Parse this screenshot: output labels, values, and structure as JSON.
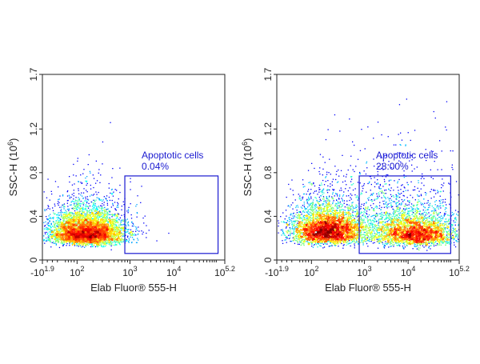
{
  "chart_data": [
    {
      "type": "scatter",
      "subtype": "flow-cytometry-density-dot-plot",
      "xlabel": "Elab Fluor® 555-H",
      "ylabel": "SSC-H",
      "ylabel_unit_base": "10",
      "ylabel_unit_exp": "6",
      "x_scale": "biexponential",
      "xlim": [
        -79.4,
        158489
      ],
      "ylim": [
        0,
        1.7
      ],
      "y_ticks": [
        "0",
        "0.4",
        "0.8",
        "1.2",
        "1.7"
      ],
      "y_tick_values": [
        0,
        0.4,
        0.8,
        1.2,
        1.7
      ],
      "x_ticks": [
        {
          "value": -79.4,
          "base": "-10",
          "exp": "1.9"
        },
        {
          "value": 100,
          "base": "10",
          "exp": "2"
        },
        {
          "value": 1000,
          "base": "10",
          "exp": "3"
        },
        {
          "value": 10000,
          "base": "10",
          "exp": "4"
        },
        {
          "value": 158489,
          "base": "10",
          "exp": "5.2"
        }
      ],
      "colormap": "jet (density)",
      "gate": {
        "name": "Apoptotic cells",
        "percent": "0.04%",
        "x_range": [
          800,
          110000
        ],
        "y_range": [
          0.06,
          0.77
        ],
        "color": "#1a1ad0"
      },
      "populations": [
        {
          "center_x": 150,
          "center_y": 0.27,
          "sd_decades": 0.42,
          "sd_y_log": 0.5,
          "floor_y": 0.1,
          "events": 5000
        }
      ],
      "gated_events": [
        [
          1000,
          0.75
        ],
        [
          1000,
          0.72
        ],
        [
          1000,
          0.65
        ],
        [
          1800,
          0.68
        ],
        [
          1700,
          0.53
        ],
        [
          1200,
          0.19
        ],
        [
          2300,
          0.25
        ],
        [
          2300,
          0.21
        ],
        [
          4000,
          0.18
        ],
        [
          7500,
          0.25
        ]
      ]
    },
    {
      "type": "scatter",
      "subtype": "flow-cytometry-density-dot-plot",
      "xlabel": "Elab Fluor® 555-H",
      "ylabel": "SSC-H",
      "ylabel_unit_base": "10",
      "ylabel_unit_exp": "6",
      "x_scale": "biexponential",
      "xlim": [
        -79.4,
        158489
      ],
      "ylim": [
        0,
        1.7
      ],
      "y_ticks": [
        "0",
        "0.4",
        "0.8",
        "1.2",
        "1.7"
      ],
      "y_tick_values": [
        0,
        0.4,
        0.8,
        1.2,
        1.7
      ],
      "x_ticks": [
        {
          "value": -79.4,
          "base": "-10",
          "exp": "1.9"
        },
        {
          "value": 100,
          "base": "10",
          "exp": "2"
        },
        {
          "value": 1000,
          "base": "10",
          "exp": "3"
        },
        {
          "value": 10000,
          "base": "10",
          "exp": "4"
        },
        {
          "value": 158489,
          "base": "10",
          "exp": "5.2"
        }
      ],
      "colormap": "jet (density)",
      "gate": {
        "name": "Apoptotic cells",
        "percent": "28.00%",
        "x_range": [
          800,
          100000
        ],
        "y_range": [
          0.06,
          0.77
        ],
        "color": "#1a1ad0"
      },
      "populations": [
        {
          "center_x": 200,
          "center_y": 0.29,
          "sd_decades": 0.42,
          "sd_y_log": 0.5,
          "floor_y": 0.1,
          "events": 4000
        },
        {
          "center_x": 15000,
          "center_y": 0.25,
          "sd_decades": 0.45,
          "sd_y_log": 0.5,
          "floor_y": 0.1,
          "events": 2600
        },
        {
          "center_x": 5000,
          "center_y": 0.4,
          "sd_decades": 0.8,
          "sd_y_log": 0.6,
          "floor_y": 0.1,
          "events": 1200
        }
      ],
      "gated_events": []
    }
  ]
}
